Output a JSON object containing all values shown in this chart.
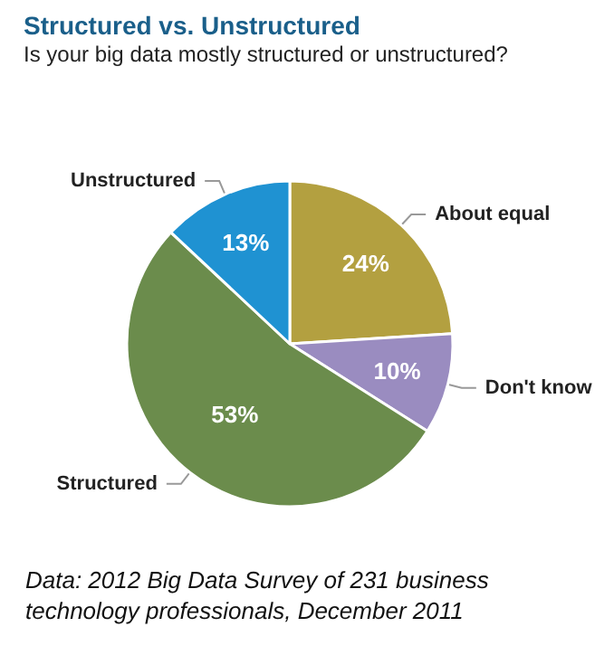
{
  "chart_data": {
    "type": "pie",
    "title": "Structured vs. Unstructured",
    "subtitle": "Is your big data mostly structured or unstructured?",
    "categories": [
      "About equal",
      "Don't know",
      "Structured",
      "Unstructured"
    ],
    "values": [
      24,
      10,
      53,
      13
    ],
    "value_labels": [
      "24%",
      "10%",
      "53%",
      "13%"
    ],
    "colors": [
      "#b3a040",
      "#9a8cc0",
      "#6b8c4c",
      "#1f92d2"
    ],
    "legend": false,
    "annotations": [
      "Data: 2012 Big Data Survey of 231 business technology professionals, December 2011"
    ]
  }
}
